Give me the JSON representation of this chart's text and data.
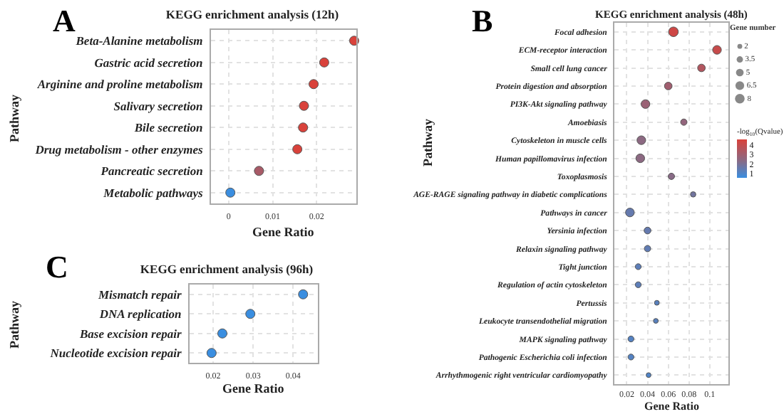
{
  "chart_data": [
    {
      "type": "bubble",
      "orientation": "horizontal",
      "title": "KEGG enrichment analysis (12h)",
      "xlabel": "Gene Ratio",
      "ylabel": "Pathway",
      "annotations": [
        "A"
      ],
      "categories": [
        "Beta-Alanine metabolism",
        "Gastric acid secretion",
        "Arginine and proline metabolism",
        "Salivary secretion",
        "Bile secretion",
        "Drug metabolism - other enzymes",
        "Pancreatic secretion",
        "Metabolic pathways"
      ],
      "values": [
        0.0285,
        0.0217,
        0.0193,
        0.0171,
        0.0169,
        0.0156,
        0.0069,
        0.0004
      ],
      "sizes": [
        1,
        1,
        1,
        1,
        1,
        1,
        1,
        1
      ],
      "colors": [
        "#d9423b",
        "#d9423b",
        "#d9423b",
        "#d9423b",
        "#d9423b",
        "#d9423b",
        "#a85a67",
        "#3a8ee0"
      ],
      "xlim": [
        -0.004,
        0.029
      ],
      "xticks": [
        0,
        0.01,
        0.02
      ],
      "grid": true
    },
    {
      "type": "bubble",
      "orientation": "horizontal",
      "title": "KEGG enrichment analysis (48h)",
      "xlabel": "Gene Ratio",
      "ylabel": "Pathway",
      "annotations": [
        "B"
      ],
      "categories": [
        "Focal adhesion",
        "ECM-receptor interaction",
        "Small cell lung cancer",
        "Protein digestion and absorption",
        "PI3K-Akt signaling pathway",
        "Amoebiasis",
        "Cytoskeleton in muscle cells",
        "Human papillomavirus infection",
        "Toxoplasmosis",
        "AGE-RAGE signaling pathway in diabetic complications",
        "Pathways in cancer",
        "Yersinia infection",
        "Relaxin signaling pathway",
        "Tight junction",
        "Regulation of actin cytoskeleton",
        "Pertussis",
        "Leukocyte transendothelial migration",
        "MAPK signaling pathway",
        "Pathogenic Escherichia coli infection",
        "Arrhythmogenic right ventricular cardiomyopathy"
      ],
      "values": [
        0.065,
        0.107,
        0.092,
        0.06,
        0.038,
        0.075,
        0.034,
        0.033,
        0.063,
        0.084,
        0.023,
        0.04,
        0.04,
        0.031,
        0.031,
        0.049,
        0.048,
        0.024,
        0.024,
        0.041
      ],
      "sizes": [
        8,
        6.5,
        5,
        5,
        6.5,
        3.5,
        6.5,
        6.5,
        3.5,
        2.5,
        6.5,
        4,
        3.5,
        3,
        3,
        2,
        2,
        3,
        3,
        2
      ],
      "cvalues": [
        4.3,
        4.1,
        3.5,
        3.0,
        2.8,
        2.6,
        2.4,
        2.4,
        2.3,
        1.8,
        1.5,
        1.5,
        1.4,
        1.3,
        1.3,
        1.2,
        1.2,
        1.1,
        1.1,
        1.0
      ],
      "clim": [
        0.5,
        4.6
      ],
      "cticks": [
        1,
        2,
        3,
        4
      ],
      "clabel": "-log$_{10}$(Qvalue)",
      "legend_title": "Gene number",
      "size_legend": [
        2,
        3.5,
        5,
        6.5,
        8
      ],
      "xlim": [
        0.008,
        0.118
      ],
      "xticks": [
        0.02,
        0.04,
        0.06,
        0.08,
        0.1
      ],
      "grid": true
    },
    {
      "type": "bubble",
      "orientation": "horizontal",
      "title": "KEGG enrichment analysis (96h)",
      "xlabel": "Gene Ratio",
      "ylabel": "Pathway",
      "annotations": [
        "C"
      ],
      "categories": [
        "Mismatch repair",
        "DNA replication",
        "Base excision repair",
        "Nucleotide excision repair"
      ],
      "values": [
        0.0425,
        0.0293,
        0.0223,
        0.0196
      ],
      "sizes": [
        1,
        1,
        1,
        1
      ],
      "colors": [
        "#3a8ee0",
        "#3a8ee0",
        "#3a8ee0",
        "#3a8ee0"
      ],
      "xlim": [
        0.0141,
        0.0462
      ],
      "xticks": [
        0.02,
        0.03,
        0.04
      ],
      "grid": true
    }
  ]
}
